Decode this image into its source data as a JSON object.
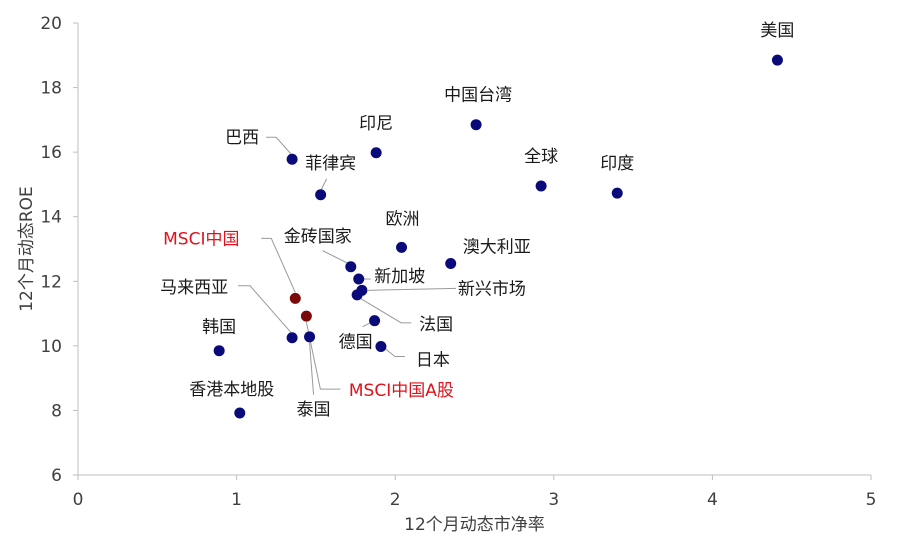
{
  "chart_data": {
    "type": "scatter",
    "title": "",
    "xlabel": "12个月动态市净率",
    "ylabel": "12个月动态ROE",
    "xlim": [
      0,
      5
    ],
    "ylim": [
      6,
      20
    ],
    "xticks": [
      0,
      1,
      2,
      3,
      4,
      5
    ],
    "yticks": [
      6,
      8,
      10,
      12,
      14,
      16,
      18,
      20
    ],
    "grid": false,
    "legend": "none",
    "colors": {
      "default": "#0a0a7a",
      "highlight": "#7a0a0a",
      "highlight_label": "#e0121b"
    },
    "points": [
      {
        "label": "美国",
        "x": 4.41,
        "y": 18.85,
        "highlight": false
      },
      {
        "label": "中国台湾",
        "x": 2.51,
        "y": 16.85,
        "highlight": false
      },
      {
        "label": "印尼",
        "x": 1.88,
        "y": 15.98,
        "highlight": false
      },
      {
        "label": "巴西",
        "x": 1.35,
        "y": 15.78,
        "highlight": false
      },
      {
        "label": "菲律宾",
        "x": 1.53,
        "y": 14.68,
        "highlight": false
      },
      {
        "label": "全球",
        "x": 2.92,
        "y": 14.95,
        "highlight": false
      },
      {
        "label": "印度",
        "x": 3.4,
        "y": 14.73,
        "highlight": false
      },
      {
        "label": "欧洲",
        "x": 2.04,
        "y": 13.05,
        "highlight": false
      },
      {
        "label": "澳大利亚",
        "x": 2.35,
        "y": 12.55,
        "highlight": false
      },
      {
        "label": "金砖国家",
        "x": 1.72,
        "y": 12.45,
        "highlight": false
      },
      {
        "label": "新加坡",
        "x": 1.77,
        "y": 12.07,
        "highlight": false
      },
      {
        "label": "新兴市场",
        "x": 1.79,
        "y": 11.72,
        "highlight": false
      },
      {
        "label": "法国",
        "x": 1.76,
        "y": 11.58,
        "highlight": false
      },
      {
        "label": "MSCI中国",
        "x": 1.37,
        "y": 11.47,
        "highlight": true
      },
      {
        "label": "马来西亚",
        "x": 1.35,
        "y": 10.25,
        "highlight": false
      },
      {
        "label": "MSCI中国A股",
        "x": 1.44,
        "y": 10.92,
        "highlight": true
      },
      {
        "label": "德国",
        "x": 1.87,
        "y": 10.78,
        "highlight": false
      },
      {
        "label": "日本",
        "x": 1.91,
        "y": 9.98,
        "highlight": false
      },
      {
        "label": "泰国",
        "x": 1.46,
        "y": 10.28,
        "highlight": false
      },
      {
        "label": "韩国",
        "x": 0.89,
        "y": 9.85,
        "highlight": false
      },
      {
        "label": "香港本地股",
        "x": 1.02,
        "y": 7.92,
        "highlight": false
      }
    ]
  }
}
